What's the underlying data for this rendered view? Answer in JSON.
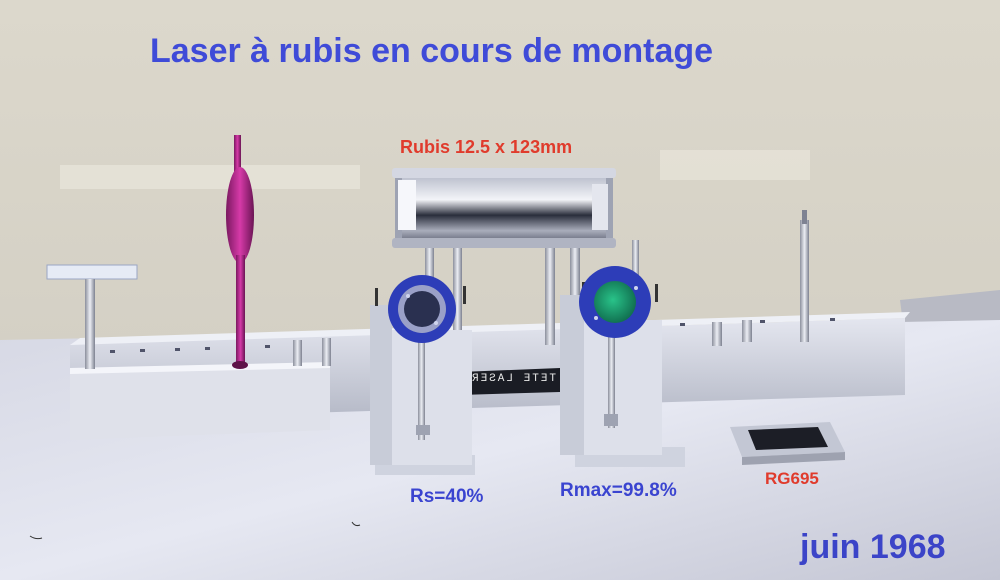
{
  "labels": {
    "title": "Laser à rubis en cours de montage",
    "rubis": "Rubis  12.5 x 123mm",
    "rs": "Rs=40%",
    "rmax": "Rmax=99.8%",
    "rg": "RG695",
    "date": "juin 1968",
    "bench": "TETE LASER"
  },
  "colors": {
    "title": "#3f4bd8",
    "red_label": "#e03b2c",
    "blue_label": "#3a44d0",
    "wall": "#d9d6cc",
    "table": "#c9ccd6",
    "aluminium": "#c8ccd8",
    "mirror_ring": "#2d3db8",
    "mirror_glass": "#1e9a6a",
    "magenta_mount": "#c02a9a"
  }
}
